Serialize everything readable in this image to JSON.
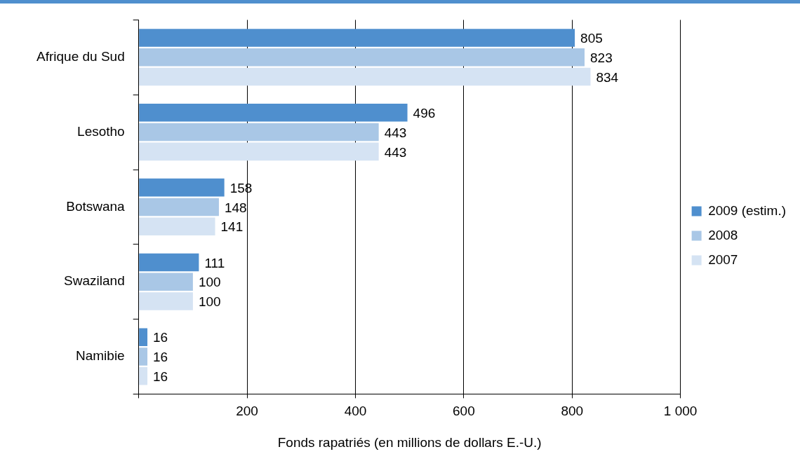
{
  "chart_data": {
    "type": "bar",
    "orientation": "horizontal",
    "xlabel": "Fonds rapatriés (en millions de dollars E.-U.)",
    "categories": [
      "Afrique du Sud",
      "Lesotho",
      "Botswana",
      "Swaziland",
      "Namibie"
    ],
    "series": [
      {
        "name": "2009 (estim.)",
        "color": "#4f8fce",
        "values": [
          805,
          496,
          158,
          111,
          16
        ]
      },
      {
        "name": "2008",
        "color": "#a9c7e6",
        "values": [
          823,
          443,
          148,
          100,
          16
        ]
      },
      {
        "name": "2007",
        "color": "#d5e3f3",
        "values": [
          834,
          443,
          141,
          100,
          16
        ]
      }
    ],
    "xlim": [
      0,
      1000
    ],
    "xticks": [
      {
        "value": 0,
        "label": null
      },
      200,
      400,
      600,
      800,
      {
        "value": 1000,
        "label": "1 000"
      }
    ],
    "grid": "x",
    "legend": "right",
    "data_labels": true
  }
}
